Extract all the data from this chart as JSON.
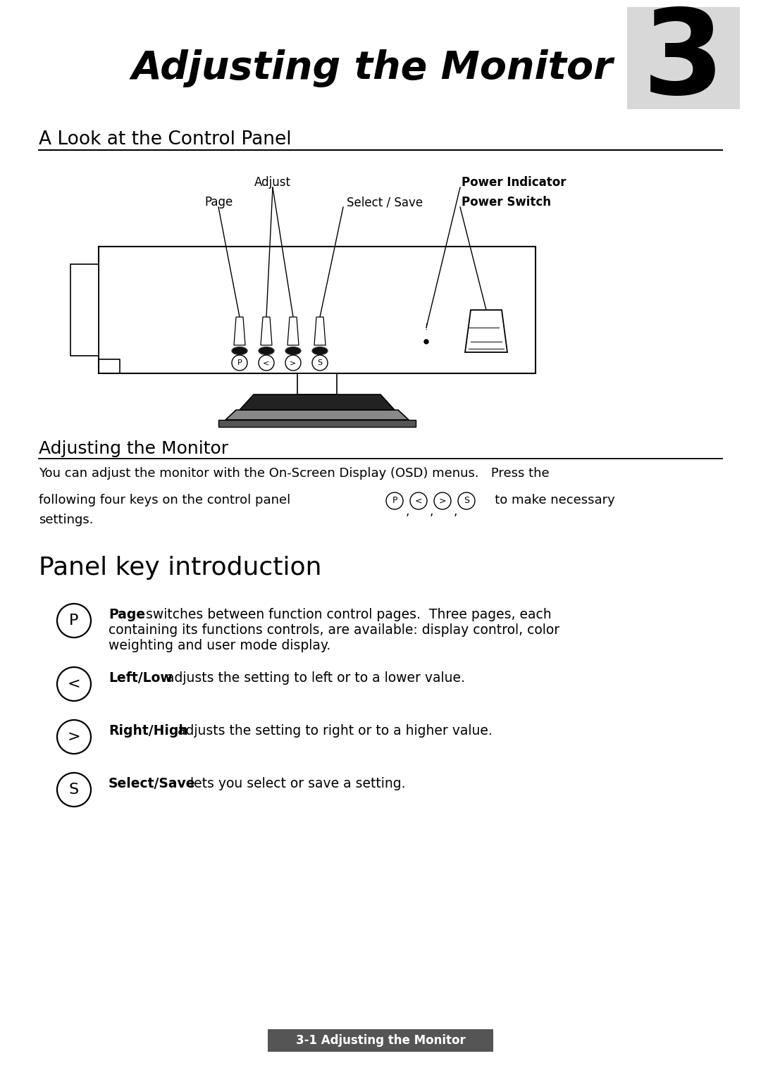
{
  "bg_color": "#ffffff",
  "title_text": "Adjusting the Monitor",
  "chapter_num": "3",
  "section1_title": "A Look at the Control Panel",
  "section2_title": "Adjusting the Monitor",
  "section3_title": "Panel key introduction",
  "body_text1": "You can adjust the monitor with the On-Screen Display (OSD) menus.   Press the",
  "body_text2": "following four keys on the control panel",
  "body_text3": "   to make necessary",
  "body_text4": "settings.",
  "panel_items": [
    {
      "symbol": "P",
      "bold": "Page",
      "rest": " switches between function control pages.  Three pages, each\ncontaining its functions controls, are available: display control, color\nweighting and user mode display."
    },
    {
      "symbol": "<",
      "bold": "Left/Low",
      "rest": " adjusts the setting to left or to a lower value."
    },
    {
      "symbol": ">",
      "bold": "Right/High",
      "rest": " adjusts the setting to right or to a higher value."
    },
    {
      "symbol": "S",
      "bold": "Select/Save",
      "rest": " lets you select or save a setting."
    }
  ],
  "footer_text": "3-1 Adjusting the Monitor",
  "footer_bg": "#555555"
}
